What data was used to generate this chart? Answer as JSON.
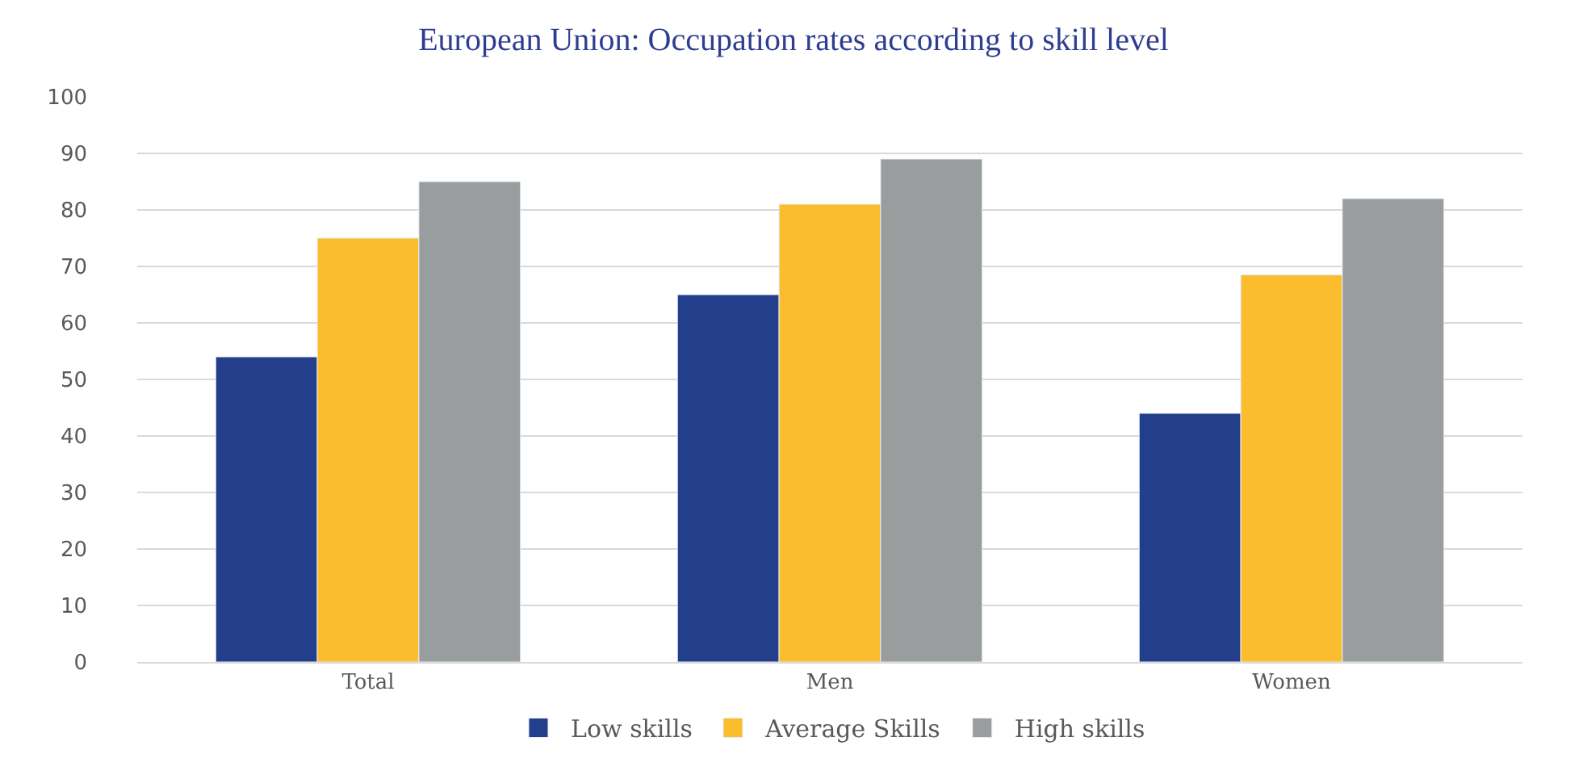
{
  "chart_data": {
    "type": "bar",
    "title": "European Union: Occupation rates according to skill level",
    "categories": [
      "Total",
      "Men",
      "Women"
    ],
    "series": [
      {
        "name": "Low skills",
        "color": "#233e8b",
        "values": [
          54,
          65,
          44
        ]
      },
      {
        "name": "Average Skills",
        "color": "#fbbc2e",
        "values": [
          75,
          81,
          68.5
        ]
      },
      {
        "name": "High skills",
        "color": "#9a9d9e",
        "values": [
          85,
          89,
          82
        ]
      }
    ],
    "ylim": [
      0,
      100
    ],
    "yticks": [
      0,
      10,
      20,
      30,
      40,
      50,
      60,
      70,
      80,
      90,
      100
    ],
    "grid": "y",
    "legend": "bottom"
  }
}
